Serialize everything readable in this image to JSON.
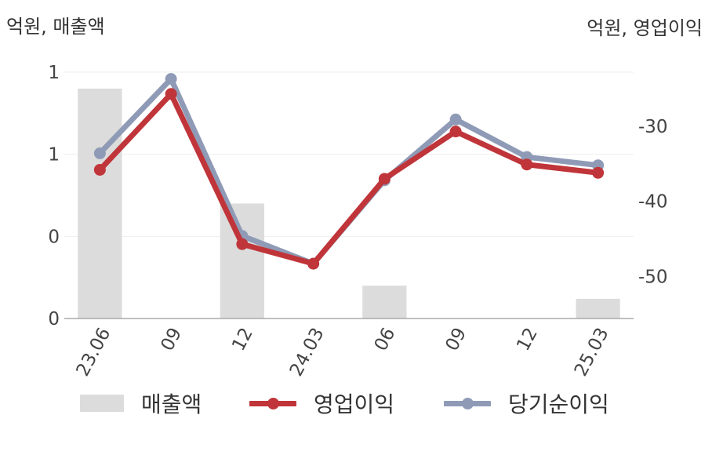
{
  "units": {
    "left": "억원, 매출액",
    "right": "억원, 영업이익"
  },
  "colors": {
    "revenue": "#dcdcdc",
    "operating": "#c0353a",
    "net": "#8f9bb6",
    "grid": "#eeeeee",
    "axis": "#aaaaaa"
  },
  "chart_data": {
    "type": "bar",
    "categories": [
      "23.06",
      "09",
      "12",
      "24.03",
      "06",
      "09",
      "12",
      "25.03"
    ],
    "y_left": {
      "ticks": [
        "0",
        "0",
        "1",
        "1"
      ],
      "tick_values": [
        0,
        0.5,
        1,
        1.5
      ],
      "range": [
        0,
        1.5
      ]
    },
    "y_right": {
      "ticks": [
        "-30",
        "-40",
        "-50"
      ],
      "tick_values": [
        -30,
        -40,
        -50
      ],
      "range": [
        -55.6,
        -22.8
      ]
    },
    "series": [
      {
        "name": "매출액",
        "kind": "bar",
        "axis": "left",
        "values": [
          1.4,
          0,
          0.7,
          0,
          0.2,
          0,
          0,
          0.12
        ]
      },
      {
        "name": "영업이익",
        "kind": "line",
        "axis": "right",
        "values": [
          -35.8,
          -25.7,
          -45.7,
          -48.3,
          -37,
          -30.7,
          -35.1,
          -36.2
        ]
      },
      {
        "name": "당기순이익",
        "kind": "line",
        "axis": "right",
        "values": [
          -33.6,
          -23.7,
          -44.6,
          -48.3,
          -37.2,
          -29.1,
          -34.1,
          -35.2
        ]
      }
    ]
  }
}
